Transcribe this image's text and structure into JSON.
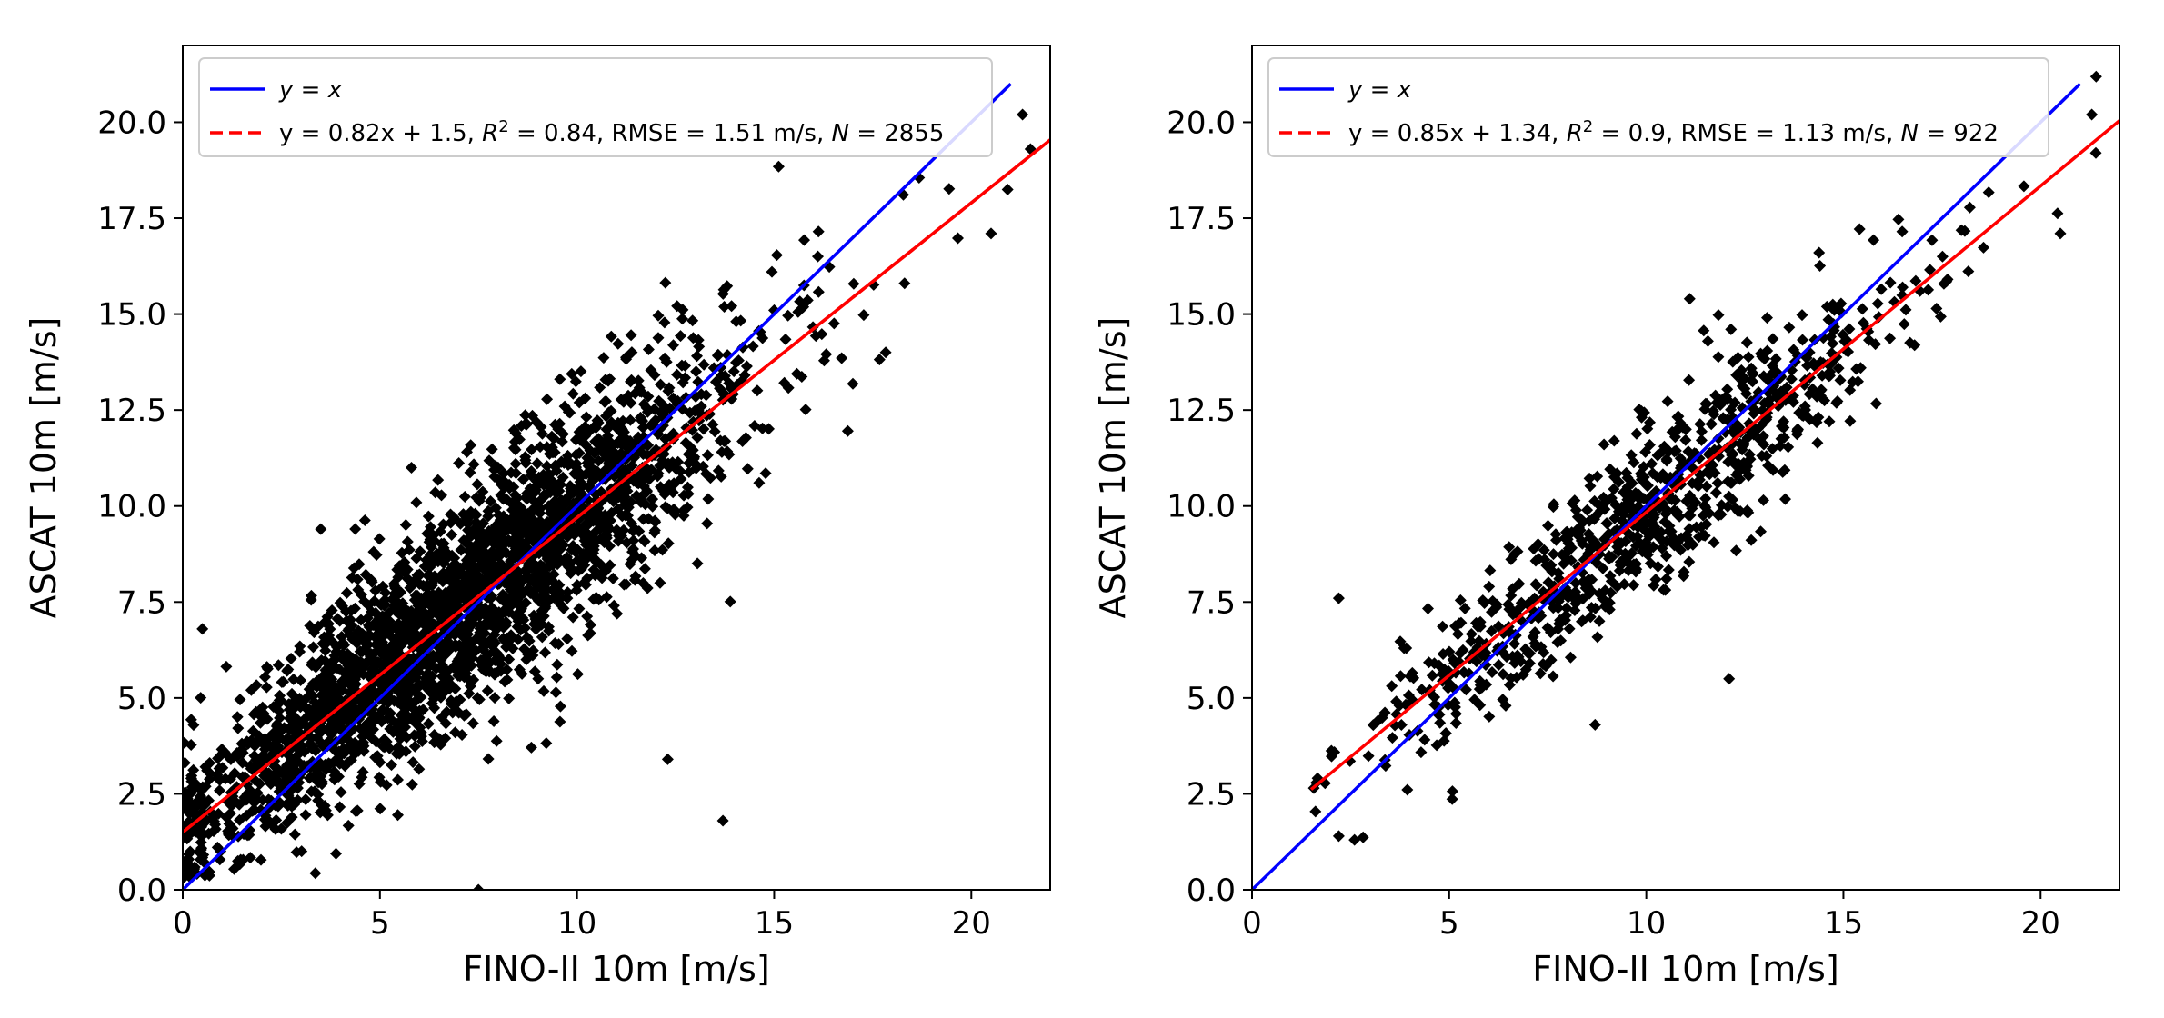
{
  "chart_data": [
    {
      "type": "scatter",
      "xlabel": "FINO-II 10m [m/s]",
      "ylabel": "ASCAT 10m [m/s]",
      "xlim": [
        0,
        22
      ],
      "ylim": [
        0,
        22
      ],
      "xticks": [
        "0",
        "5",
        "10",
        "15",
        "20"
      ],
      "xtick_values": [
        0,
        5,
        10,
        15,
        20
      ],
      "yticks": [
        "0.0",
        "2.5",
        "5.0",
        "7.5",
        "10.0",
        "12.5",
        "15.0",
        "17.5",
        "20.0"
      ],
      "ytick_values": [
        0,
        2.5,
        5,
        7.5,
        10,
        12.5,
        15,
        17.5,
        20
      ],
      "legend_position": "upper-left",
      "identity_line": {
        "label_prefix": "y",
        "label_rest": " = x",
        "color": "#0000ff",
        "x_range": [
          0,
          21
        ]
      },
      "fit_line": {
        "label": "y = 0.82x + 1.5, R² = 0.84, RMSE = 1.51 m/s, N = 2855",
        "label_parts": [
          "y = 0.82x + 1.5, ",
          "R",
          "2",
          " = 0.84, RMSE = 1.51 m/s, ",
          "N",
          " = 2855"
        ],
        "slope": 0.82,
        "intercept": 1.5,
        "r2": 0.84,
        "rmse": 1.51,
        "n": 2855,
        "color": "#ff0000",
        "x_range": [
          0,
          22
        ]
      },
      "marker_color": "#000000",
      "scatter": {
        "n_points": 2855,
        "noise_sd": 1.5,
        "x_range": [
          0,
          21.5
        ],
        "outliers": [
          [
            7.5,
            0.0
          ],
          [
            13.7,
            1.8
          ],
          [
            12.3,
            3.4
          ],
          [
            20.5,
            17.1
          ],
          [
            21.3,
            20.2
          ],
          [
            21.5,
            19.3
          ],
          [
            0.5,
            6.8
          ],
          [
            3.5,
            9.4
          ],
          [
            5.8,
            11.0
          ]
        ]
      }
    },
    {
      "type": "scatter",
      "xlabel": "FINO-II 10m [m/s]",
      "ylabel": "ASCAT 10m [m/s]",
      "xlim": [
        0,
        22
      ],
      "ylim": [
        0,
        22
      ],
      "xticks": [
        "0",
        "5",
        "10",
        "15",
        "20"
      ],
      "xtick_values": [
        0,
        5,
        10,
        15,
        20
      ],
      "yticks": [
        "0.0",
        "2.5",
        "5.0",
        "7.5",
        "10.0",
        "12.5",
        "15.0",
        "17.5",
        "20.0"
      ],
      "ytick_values": [
        0,
        2.5,
        5,
        7.5,
        10,
        12.5,
        15,
        17.5,
        20
      ],
      "legend_position": "upper-left",
      "identity_line": {
        "label_prefix": "y",
        "label_rest": " = x",
        "color": "#0000ff",
        "x_range": [
          0,
          21
        ]
      },
      "fit_line": {
        "label": "y = 0.85x + 1.34, R² = 0.9, RMSE = 1.13 m/s, N = 922",
        "label_parts": [
          "y = 0.85x + 1.34, ",
          "R",
          "2",
          " = 0.9, RMSE = 1.13 m/s, ",
          "N",
          " = 922"
        ],
        "slope": 0.85,
        "intercept": 1.34,
        "r2": 0.9,
        "rmse": 1.13,
        "n": 922,
        "color": "#ff0000",
        "x_range": [
          1.5,
          22
        ]
      },
      "marker_color": "#000000",
      "scatter": {
        "n_points": 922,
        "noise_sd": 1.05,
        "x_range": [
          1.5,
          21.5
        ],
        "outliers": [
          [
            2.2,
            7.6
          ],
          [
            2.2,
            1.4
          ],
          [
            2.6,
            1.3
          ],
          [
            8.7,
            4.3
          ],
          [
            12.1,
            5.5
          ],
          [
            11.1,
            15.4
          ],
          [
            20.5,
            17.1
          ],
          [
            21.3,
            20.2
          ],
          [
            21.4,
            19.2
          ]
        ]
      }
    }
  ]
}
